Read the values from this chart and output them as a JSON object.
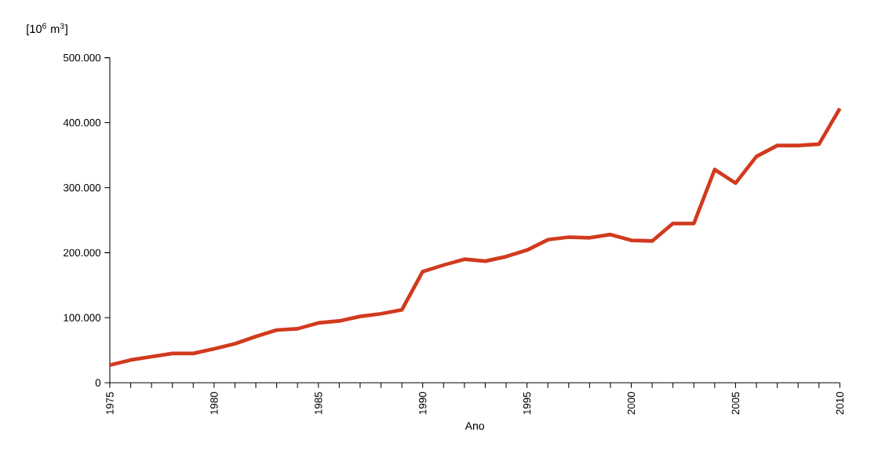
{
  "chart_data": {
    "type": "line",
    "xlabel": "Ano",
    "ylabel": "[10$^{6}$ m$^{3}$]",
    "x": [
      1975,
      1976,
      1977,
      1978,
      1979,
      1980,
      1981,
      1982,
      1983,
      1984,
      1985,
      1986,
      1987,
      1988,
      1989,
      1990,
      1991,
      1992,
      1993,
      1994,
      1995,
      1996,
      1997,
      1998,
      1999,
      2000,
      2001,
      2002,
      2003,
      2004,
      2005,
      2006,
      2007,
      2008,
      2009,
      2010
    ],
    "series": [
      {
        "color": "#d13a1e",
        "values": [
          27000,
          35000,
          40000,
          45000,
          45000,
          52000,
          60000,
          71000,
          81000,
          83000,
          92000,
          95000,
          102000,
          106000,
          112000,
          171000,
          181000,
          190000,
          187000,
          194000,
          204000,
          220000,
          224000,
          223000,
          228000,
          219000,
          218000,
          245000,
          245000,
          328000,
          307000,
          348000,
          365000,
          365000,
          367000,
          422000
        ]
      }
    ],
    "xlim": [
      1975,
      2010
    ],
    "xticks": [
      1975,
      {
        "value": 1976,
        "label": null
      },
      {
        "value": 1977,
        "label": null
      },
      {
        "value": 1978,
        "label": null
      },
      {
        "value": 1979,
        "label": null
      },
      1980,
      {
        "value": 1981,
        "label": null
      },
      {
        "value": 1982,
        "label": null
      },
      {
        "value": 1983,
        "label": null
      },
      {
        "value": 1984,
        "label": null
      },
      1985,
      {
        "value": 1986,
        "label": null
      },
      {
        "value": 1987,
        "label": null
      },
      {
        "value": 1988,
        "label": null
      },
      {
        "value": 1989,
        "label": null
      },
      1990,
      {
        "value": 1991,
        "label": null
      },
      {
        "value": 1992,
        "label": null
      },
      {
        "value": 1993,
        "label": null
      },
      {
        "value": 1994,
        "label": null
      },
      1995,
      {
        "value": 1996,
        "label": null
      },
      {
        "value": 1997,
        "label": null
      },
      {
        "value": 1998,
        "label": null
      },
      {
        "value": 1999,
        "label": null
      },
      2000,
      {
        "value": 2001,
        "label": null
      },
      {
        "value": 2002,
        "label": null
      },
      {
        "value": 2003,
        "label": null
      },
      {
        "value": 2004,
        "label": null
      },
      2005,
      {
        "value": 2006,
        "label": null
      },
      {
        "value": 2007,
        "label": null
      },
      {
        "value": 2008,
        "label": null
      },
      {
        "value": 2009,
        "label": null
      },
      2010
    ],
    "ylim": [
      0,
      500000
    ],
    "yticks": [
      0,
      {
        "value": 100000,
        "label": "100.000"
      },
      {
        "value": 200000,
        "label": "200.000"
      },
      {
        "value": 300000,
        "label": "300.000"
      },
      {
        "value": 400000,
        "label": "400.000"
      },
      {
        "value": 500000,
        "label": "500.000"
      }
    ],
    "marker": "none",
    "line_style": "solid"
  }
}
